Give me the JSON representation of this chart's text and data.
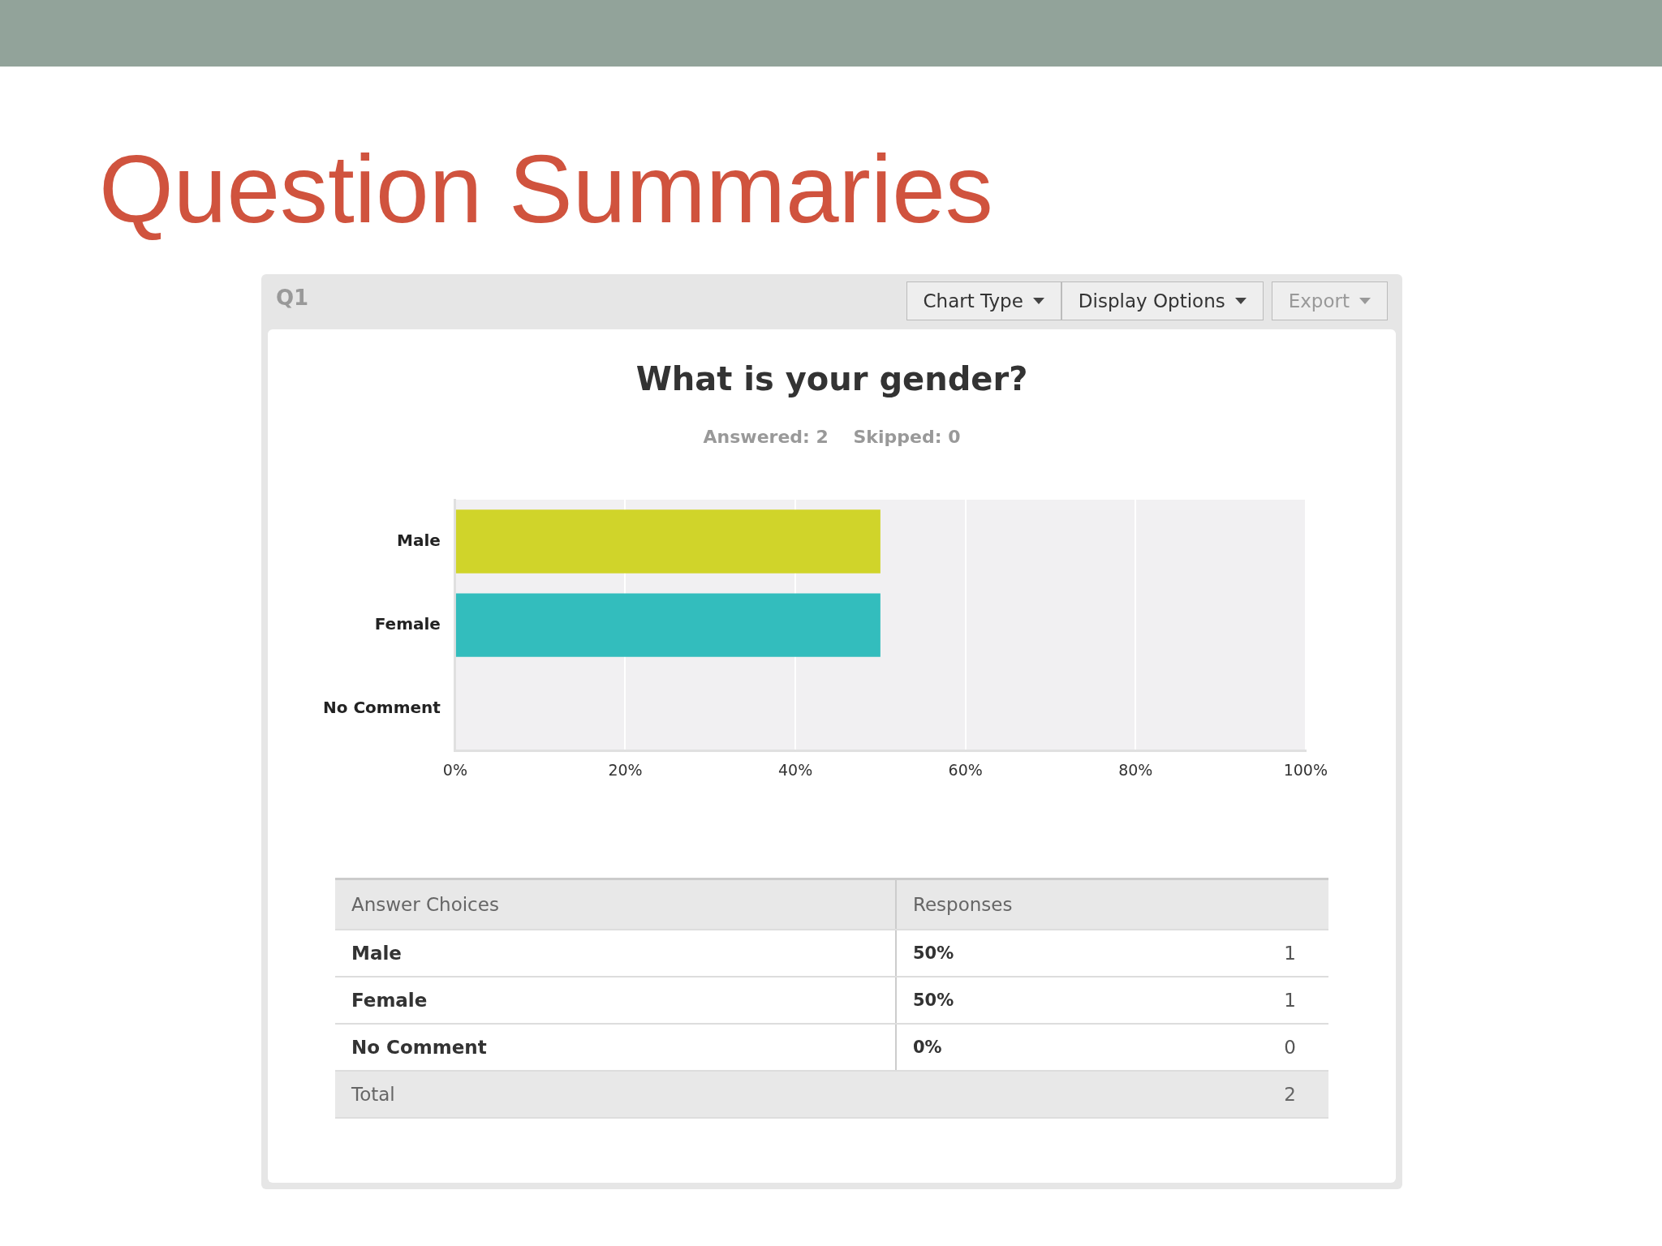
{
  "chart_data": {
    "type": "bar",
    "orientation": "horizontal",
    "title": "What is your gender?",
    "subtitle": "Answered: 2    Skipped: 0",
    "categories": [
      "Male",
      "Female",
      "No Comment"
    ],
    "values": [
      50,
      50,
      0
    ],
    "colors": [
      "#d0d42a",
      "#33bdbd",
      "#8c8c8c"
    ],
    "xlim": [
      0,
      100
    ],
    "xticks": [
      {
        "value": 0,
        "label": "0%"
      },
      {
        "value": 20,
        "label": "20%"
      },
      {
        "value": 40,
        "label": "40%"
      },
      {
        "value": 60,
        "label": "60%"
      },
      {
        "value": 80,
        "label": "80%"
      },
      {
        "value": 100,
        "label": "100%"
      }
    ],
    "grid": "x",
    "legend": false,
    "annotations": [
      "Question Summaries",
      "Q1",
      "Chart Type",
      "Display Options",
      "Export",
      "Answer Choices",
      "Responses",
      "50%",
      "1",
      "50%",
      "1",
      "0%",
      "0",
      "Total",
      "2"
    ]
  }
}
